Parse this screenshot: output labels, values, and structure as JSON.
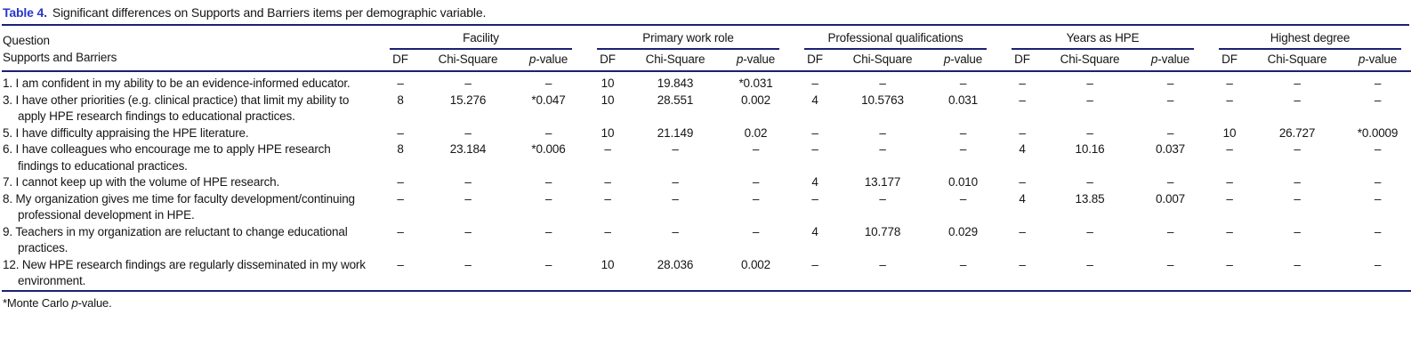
{
  "caption": {
    "label": "Table 4.",
    "text": "Significant differences on Supports and Barriers items per demographic variable."
  },
  "header": {
    "question_line1": "Question",
    "question_line2": "Supports and Barriers",
    "groups": [
      "Facility",
      "Primary work role",
      "Professional qualifications",
      "Years as HPE",
      "Highest degree"
    ],
    "sub": {
      "df": "DF",
      "chi": "Chi-Square",
      "p_italic": "p",
      "p_rest": "-value"
    }
  },
  "rows": [
    {
      "question": "1. I am confident in my ability to be an evidence-informed educator.",
      "cells": [
        "–",
        "–",
        "–",
        "10",
        "19.843",
        "*0.031",
        "–",
        "–",
        "–",
        "–",
        "–",
        "–",
        "–",
        "–",
        "–"
      ]
    },
    {
      "question": "3. I have other priorities (e.g. clinical practice) that limit my ability to apply HPE research findings to educational practices.",
      "cells": [
        "8",
        "15.276",
        "*0.047",
        "10",
        "28.551",
        "0.002",
        "4",
        "10.5763",
        "0.031",
        "–",
        "–",
        "–",
        "–",
        "–",
        "–"
      ]
    },
    {
      "question": "5. I have difficulty appraising the HPE literature.",
      "cells": [
        "–",
        "–",
        "–",
        "10",
        "21.149",
        "0.02",
        "–",
        "–",
        "–",
        "–",
        "–",
        "–",
        "10",
        "26.727",
        "*0.0009"
      ]
    },
    {
      "question": "6. I have colleagues who encourage me to apply HPE research findings to educational practices.",
      "cells": [
        "8",
        "23.184",
        "*0.006",
        "–",
        "–",
        "–",
        "–",
        "–",
        "–",
        "4",
        "10.16",
        "0.037",
        "–",
        "–",
        "–"
      ]
    },
    {
      "question": "7. I cannot keep up with the volume of HPE research.",
      "cells": [
        "–",
        "–",
        "–",
        "–",
        "–",
        "–",
        "4",
        "13.177",
        "0.010",
        "–",
        "–",
        "–",
        "–",
        "–",
        "–"
      ]
    },
    {
      "question": "8. My organization gives me time for faculty development/continuing professional development in HPE.",
      "cells": [
        "–",
        "–",
        "–",
        "–",
        "–",
        "–",
        "–",
        "–",
        "–",
        "4",
        "13.85",
        "0.007",
        "–",
        "–",
        "–"
      ]
    },
    {
      "question": "9. Teachers in my organization are reluctant to change educational practices.",
      "cells": [
        "–",
        "–",
        "–",
        "–",
        "–",
        "–",
        "4",
        "10.778",
        "0.029",
        "–",
        "–",
        "–",
        "–",
        "–",
        "–"
      ]
    },
    {
      "question": "12. New HPE research findings are regularly disseminated in my work environment.",
      "cells": [
        "–",
        "–",
        "–",
        "10",
        "28.036",
        "0.002",
        "–",
        "–",
        "–",
        "–",
        "–",
        "–",
        "–",
        "–",
        "–"
      ]
    }
  ],
  "footnote": {
    "prefix": "*Monte Carlo ",
    "p_italic": "p",
    "suffix": "-value."
  },
  "colors": {
    "rule_navy": "#1b2173",
    "caption_blue": "#2737c8"
  }
}
